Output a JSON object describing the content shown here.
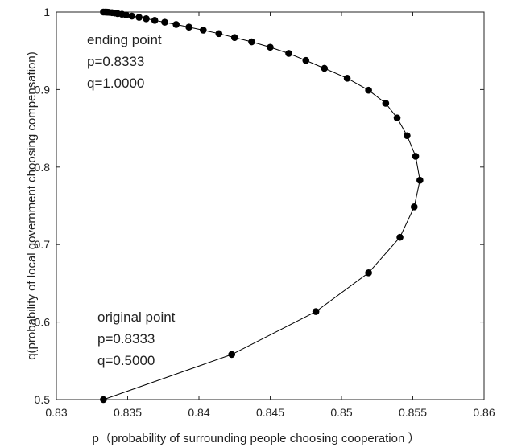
{
  "chart_data": {
    "type": "line",
    "title": "",
    "xlabel": "p（probability of surrounding people choosing cooperation ）",
    "ylabel": "q(probability of local government choosing compensation)",
    "xlim": [
      0.83,
      0.86
    ],
    "ylim": [
      0.5,
      1.0
    ],
    "x_ticks": [
      0.83,
      0.835,
      0.84,
      0.845,
      0.85,
      0.855,
      0.86
    ],
    "y_ticks": [
      0.5,
      0.6,
      0.7,
      0.8,
      0.9,
      1.0
    ],
    "x_tick_labels": [
      "0.83",
      "0.835",
      "0.84",
      "0.845",
      "0.85",
      "0.855",
      "0.86"
    ],
    "y_tick_labels": [
      "0.5",
      "0.6",
      "0.7",
      "0.8",
      "0.9",
      "1"
    ],
    "grid": false,
    "legend": "none",
    "series": [
      {
        "marker": "filled-circle",
        "color": "#000000",
        "points": [
          [
            0.8333,
            0.5
          ],
          [
            0.8423,
            0.5582
          ],
          [
            0.8482,
            0.6135
          ],
          [
            0.8519,
            0.6636
          ],
          [
            0.8541,
            0.7094
          ],
          [
            0.8551,
            0.7486
          ],
          [
            0.8555,
            0.783
          ],
          [
            0.8552,
            0.8139
          ],
          [
            0.8546,
            0.8405
          ],
          [
            0.8539,
            0.8634
          ],
          [
            0.8531,
            0.8823
          ],
          [
            0.8519,
            0.8992
          ],
          [
            0.8504,
            0.9146
          ],
          [
            0.8488,
            0.9274
          ],
          [
            0.8475,
            0.9376
          ],
          [
            0.8463,
            0.9466
          ],
          [
            0.845,
            0.9546
          ],
          [
            0.8437,
            0.9616
          ],
          [
            0.8425,
            0.9671
          ],
          [
            0.8414,
            0.9722
          ],
          [
            0.8403,
            0.9767
          ],
          [
            0.8393,
            0.9806
          ],
          [
            0.8384,
            0.984
          ],
          [
            0.8376,
            0.9869
          ],
          [
            0.8369,
            0.9893
          ],
          [
            0.8363,
            0.9914
          ],
          [
            0.8358,
            0.9932
          ],
          [
            0.8353,
            0.9948
          ],
          [
            0.8349,
            0.9961
          ],
          [
            0.8346,
            0.9972
          ],
          [
            0.8343,
            0.998
          ],
          [
            0.8341,
            0.9987
          ],
          [
            0.8339,
            0.9992
          ],
          [
            0.8337,
            0.9996
          ],
          [
            0.8336,
            0.9998
          ],
          [
            0.8335,
            0.9999
          ],
          [
            0.8334,
            1.0
          ],
          [
            0.8333,
            1.0
          ]
        ]
      }
    ],
    "annotations": {
      "ending": [
        "ending point",
        "p=0.8333",
        "q=1.0000"
      ],
      "original": [
        "original point",
        "p=0.8333",
        "q=0.5000"
      ]
    }
  }
}
